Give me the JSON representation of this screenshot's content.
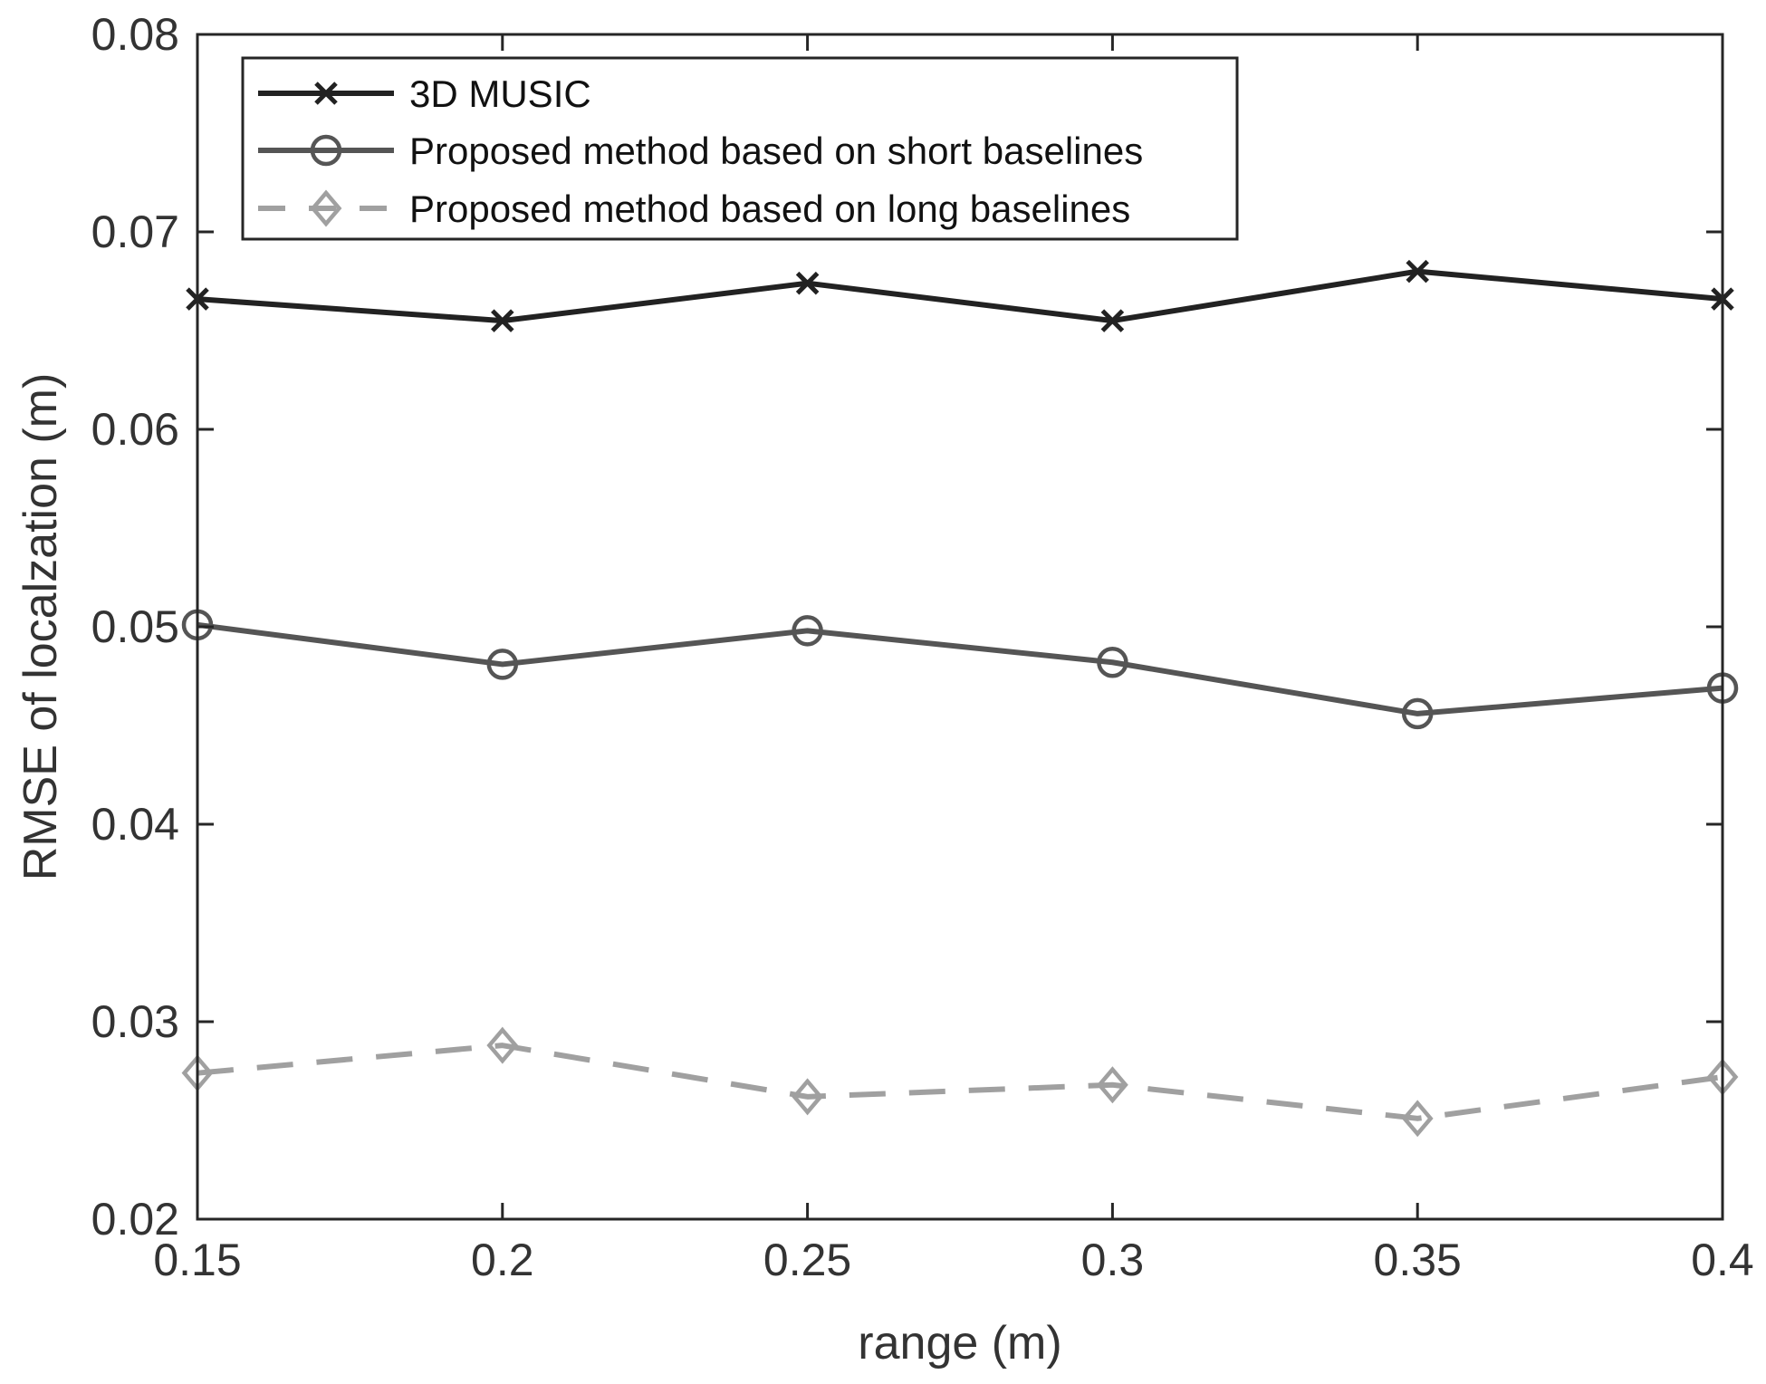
{
  "chart_data": {
    "type": "line",
    "title": "",
    "xlabel": "range (m)",
    "ylabel": "RMSE of localzation (m)",
    "x": [
      0.15,
      0.2,
      0.25,
      0.3,
      0.35,
      0.4
    ],
    "xlim": [
      0.15,
      0.4
    ],
    "ylim": [
      0.02,
      0.08
    ],
    "xticks": [
      "0.15",
      "0.2",
      "0.25",
      "0.3",
      "0.35",
      "0.4"
    ],
    "yticks": [
      "0.02",
      "0.03",
      "0.04",
      "0.05",
      "0.06",
      "0.07",
      "0.08"
    ],
    "grid": false,
    "legend_position": "top-left",
    "series": [
      {
        "name": "3D MUSIC",
        "marker": "x",
        "line": "solid",
        "color": "#222222",
        "values": [
          0.0666,
          0.0655,
          0.0674,
          0.0655,
          0.068,
          0.0666
        ]
      },
      {
        "name": "Proposed method based on short baselines",
        "marker": "circle",
        "line": "solid",
        "color": "#555555",
        "values": [
          0.0501,
          0.0481,
          0.0498,
          0.0482,
          0.0456,
          0.0469
        ]
      },
      {
        "name": "Proposed method based on long baselines",
        "marker": "diamond",
        "line": "dashed",
        "color": "#a0a0a0",
        "values": [
          0.0274,
          0.0288,
          0.0262,
          0.0268,
          0.0251,
          0.0272
        ]
      }
    ]
  }
}
